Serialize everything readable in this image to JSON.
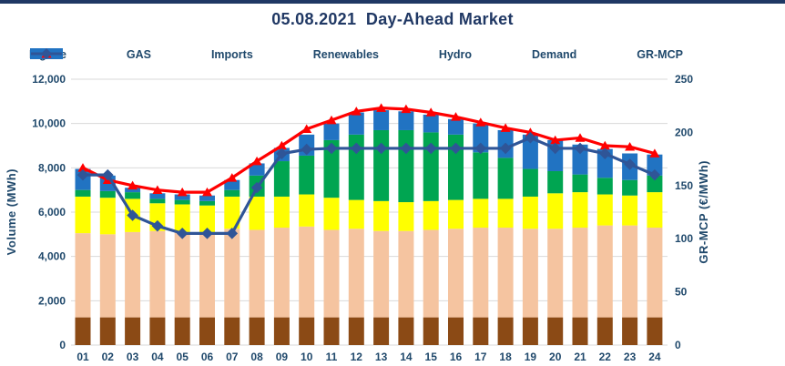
{
  "title": "05.08.2021  Day-Ahead Market",
  "legend": {
    "items": [
      {
        "label": "Lignite",
        "glyph": "swatch",
        "color": "#8B4A15"
      },
      {
        "label": "GAS",
        "glyph": "swatch",
        "color": "#F5C4A0"
      },
      {
        "label": "Imports",
        "glyph": "swatch",
        "color": "#FFFF00"
      },
      {
        "label": "Renewables",
        "glyph": "swatch",
        "color": "#00A551"
      },
      {
        "label": "Hydro",
        "glyph": "swatch",
        "color": "#2173C2"
      },
      {
        "label": "Demand",
        "glyph": "line-triangle",
        "color": "#FF0000"
      },
      {
        "label": "GR-MCP",
        "glyph": "line-diamond",
        "color": "#2F5597"
      }
    ]
  },
  "colors": {
    "title_text": "#203864",
    "axis_text": "#1F486B",
    "gridline": "#DADADA",
    "top_bar": "#1F3864",
    "background": "#FFFFFF"
  },
  "chart_data": {
    "type": "combo-stacked-bar-line",
    "title": "05.08.2021  Day-Ahead Market",
    "categories": [
      "01",
      "02",
      "03",
      "04",
      "05",
      "06",
      "07",
      "08",
      "09",
      "10",
      "11",
      "12",
      "13",
      "14",
      "15",
      "16",
      "17",
      "18",
      "19",
      "20",
      "21",
      "22",
      "23",
      "24"
    ],
    "bar_series": [
      {
        "name": "Lignite",
        "color": "#8B4A15",
        "values": [
          1250,
          1250,
          1250,
          1250,
          1250,
          1250,
          1250,
          1250,
          1250,
          1250,
          1250,
          1250,
          1250,
          1250,
          1250,
          1250,
          1250,
          1250,
          1250,
          1250,
          1250,
          1250,
          1250,
          1250
        ]
      },
      {
        "name": "GAS",
        "color": "#F5C4A0",
        "values": [
          3800,
          3750,
          3850,
          3900,
          3850,
          3800,
          4000,
          3950,
          4050,
          4100,
          3950,
          4000,
          3900,
          3900,
          3950,
          4000,
          4050,
          4050,
          4000,
          4000,
          4050,
          4150,
          4150,
          4050
        ]
      },
      {
        "name": "Imports",
        "color": "#FFFF00",
        "values": [
          1650,
          1650,
          1500,
          1250,
          1250,
          1250,
          1450,
          1500,
          1400,
          1450,
          1450,
          1300,
          1350,
          1300,
          1300,
          1300,
          1300,
          1300,
          1450,
          1600,
          1600,
          1400,
          1350,
          1600
        ]
      },
      {
        "name": "Renewables",
        "color": "#00A551",
        "values": [
          300,
          300,
          300,
          200,
          200,
          200,
          300,
          950,
          1600,
          1750,
          2600,
          2950,
          3200,
          3250,
          3100,
          2950,
          2100,
          1850,
          1250,
          1000,
          800,
          750,
          700,
          750
        ]
      },
      {
        "name": "Hydro",
        "color": "#2173C2",
        "values": [
          950,
          700,
          200,
          250,
          250,
          250,
          450,
          550,
          600,
          950,
          750,
          1000,
          900,
          850,
          800,
          700,
          1300,
          1250,
          1550,
          1400,
          1350,
          1300,
          1200,
          950
        ]
      }
    ],
    "line_series": [
      {
        "name": "Demand",
        "axis": "left",
        "color": "#FF0000",
        "marker": "triangle",
        "values": [
          8000,
          7450,
          7200,
          7000,
          6900,
          6900,
          7550,
          8300,
          9000,
          9750,
          10150,
          10550,
          10700,
          10650,
          10500,
          10300,
          10050,
          9800,
          9600,
          9250,
          9350,
          9000,
          8950,
          8650
        ]
      },
      {
        "name": "GR-MCP",
        "axis": "right",
        "color": "#2F5597",
        "marker": "diamond",
        "values": [
          160,
          160,
          122,
          112,
          105,
          105,
          105,
          148,
          180,
          184,
          185,
          185,
          185,
          185,
          185,
          185,
          185,
          185,
          195,
          185,
          185,
          180,
          170,
          160
        ]
      }
    ],
    "left_axis": {
      "title": "Volume (MWh)",
      "min": 0,
      "max": 12000,
      "step": 2000,
      "tick_labels": [
        "0",
        "2,000",
        "4,000",
        "6,000",
        "8,000",
        "10,000",
        "12,000"
      ]
    },
    "right_axis": {
      "title": "GR-MCP (€/MWh)",
      "min": 0,
      "max": 250,
      "step": 50,
      "tick_labels": [
        "0",
        "50",
        "100",
        "150",
        "200",
        "250"
      ]
    },
    "grid": true,
    "legend_position": "top"
  }
}
